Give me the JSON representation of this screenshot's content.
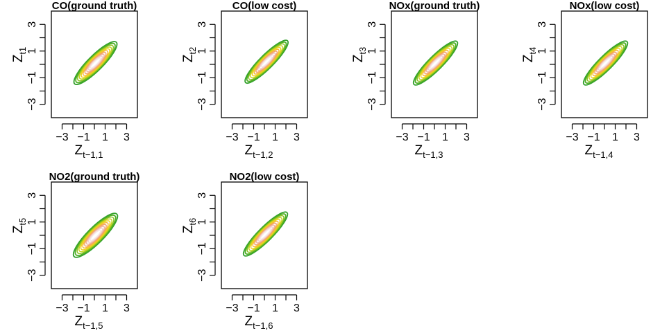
{
  "figure": {
    "description_free": true
  },
  "contour_palette": [
    "#33a02c",
    "#4daf22",
    "#8cc21e",
    "#c7d41b",
    "#f0d21c",
    "#f5b83d",
    "#f3a26a",
    "#f0b6a0",
    "#f3d2cc",
    "#f7e8e6"
  ],
  "chart_data": [
    {
      "type": "contour",
      "title": "CO(ground truth)",
      "xlabel_base": "Z",
      "xlabel_sub": "t−1,1",
      "ylabel_base": "Z",
      "ylabel_sub": "t1",
      "xlim": [
        -4,
        4
      ],
      "ylim": [
        -4,
        4
      ],
      "xticks": [
        "−3",
        "−1",
        "1",
        "3"
      ],
      "yticks": [
        "−3",
        "−1",
        "1",
        "3"
      ],
      "xtick_values": [
        -3,
        -1,
        1,
        3
      ],
      "ytick_values": [
        -3,
        -1,
        1,
        3
      ],
      "center": [
        0.1,
        0.1
      ],
      "correlation": 0.88,
      "spread": 2.0,
      "levels": 10,
      "grid": false,
      "legend": "none"
    },
    {
      "type": "contour",
      "title": "CO(low cost)",
      "xlabel_base": "Z",
      "xlabel_sub": "t−1,2",
      "ylabel_base": "Z",
      "ylabel_sub": "t2",
      "xlim": [
        -4,
        4
      ],
      "ylim": [
        -4,
        4
      ],
      "xticks": [
        "−3",
        "−1",
        "1",
        "3"
      ],
      "yticks": [
        "−3",
        "−1",
        "1",
        "3"
      ],
      "xtick_values": [
        -3,
        -1,
        1,
        3
      ],
      "ytick_values": [
        -3,
        -1,
        1,
        3
      ],
      "center": [
        0.2,
        0.2
      ],
      "correlation": 0.9,
      "spread": 2.0,
      "levels": 10,
      "grid": false,
      "legend": "none"
    },
    {
      "type": "contour",
      "title": "NOx(ground truth)",
      "xlabel_base": "Z",
      "xlabel_sub": "t−1,3",
      "ylabel_base": "Z",
      "ylabel_sub": "t3",
      "xlim": [
        -4,
        4
      ],
      "ylim": [
        -4,
        4
      ],
      "xticks": [
        "−3",
        "−1",
        "1",
        "3"
      ],
      "yticks": [
        "−3",
        "−1",
        "1",
        "3"
      ],
      "xtick_values": [
        -3,
        -1,
        1,
        3
      ],
      "ytick_values": [
        -3,
        -1,
        1,
        3
      ],
      "center": [
        0.1,
        0.1
      ],
      "correlation": 0.9,
      "spread": 2.05,
      "levels": 10,
      "grid": false,
      "legend": "none"
    },
    {
      "type": "contour",
      "title": "NOx(low cost)",
      "xlabel_base": "Z",
      "xlabel_sub": "t−1,4",
      "ylabel_base": "Z",
      "ylabel_sub": "t4",
      "xlim": [
        -4,
        4
      ],
      "ylim": [
        -4,
        4
      ],
      "xticks": [
        "−3",
        "−1",
        "1",
        "3"
      ],
      "yticks": [
        "−3",
        "−1",
        "1",
        "3"
      ],
      "xtick_values": [
        -3,
        -1,
        1,
        3
      ],
      "ytick_values": [
        -3,
        -1,
        1,
        3
      ],
      "center": [
        0.1,
        0.1
      ],
      "correlation": 0.9,
      "spread": 2.05,
      "levels": 10,
      "grid": false,
      "legend": "none"
    },
    {
      "type": "contour",
      "title": "NO2(ground truth)",
      "xlabel_base": "Z",
      "xlabel_sub": "t−1,5",
      "ylabel_base": "Z",
      "ylabel_sub": "t5",
      "xlim": [
        -4,
        4
      ],
      "ylim": [
        -4,
        4
      ],
      "xticks": [
        "−3",
        "−1",
        "1",
        "3"
      ],
      "yticks": [
        "−3",
        "−1",
        "1",
        "3"
      ],
      "xtick_values": [
        -3,
        -1,
        1,
        3
      ],
      "ytick_values": [
        -3,
        -1,
        1,
        3
      ],
      "center": [
        0.1,
        0.0
      ],
      "correlation": 0.87,
      "spread": 2.05,
      "levels": 10,
      "grid": false,
      "legend": "none"
    },
    {
      "type": "contour",
      "title": "NO2(low cost)",
      "xlabel_base": "Z",
      "xlabel_sub": "t−1,6",
      "ylabel_base": "Z",
      "ylabel_sub": "t6",
      "xlim": [
        -4,
        4
      ],
      "ylim": [
        -4,
        4
      ],
      "xticks": [
        "−3",
        "−1",
        "1",
        "3"
      ],
      "yticks": [
        "−3",
        "−1",
        "1",
        "3"
      ],
      "xtick_values": [
        -3,
        -1,
        1,
        3
      ],
      "ytick_values": [
        -3,
        -1,
        1,
        3
      ],
      "center": [
        0.1,
        0.1
      ],
      "correlation": 0.9,
      "spread": 2.05,
      "levels": 10,
      "grid": false,
      "legend": "none"
    }
  ]
}
